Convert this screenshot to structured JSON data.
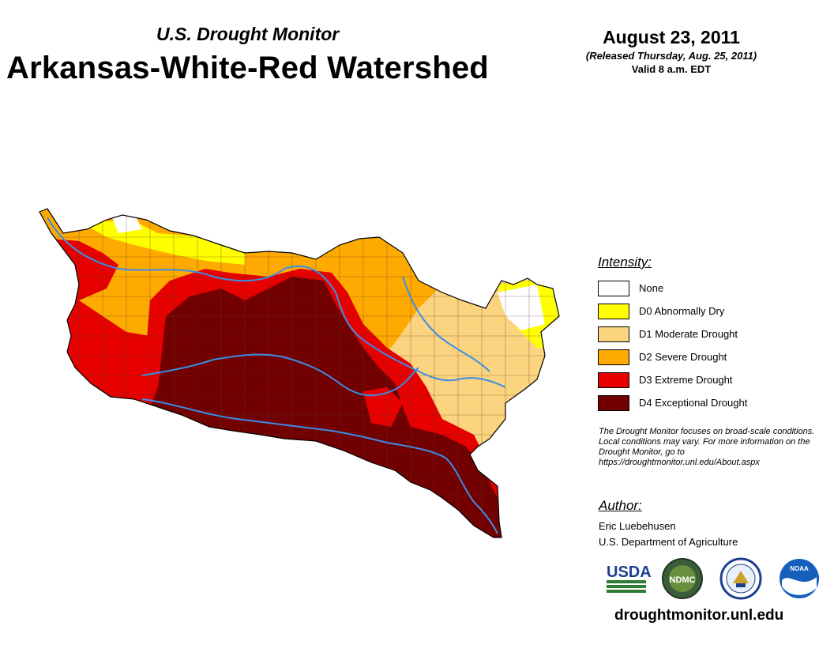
{
  "header": {
    "subtitle": "U.S. Drought Monitor",
    "title": "Arkansas-White-Red Watershed",
    "date": "August 23, 2011",
    "released": "(Released Thursday, Aug. 25, 2011)",
    "valid": "Valid 8 a.m. EDT"
  },
  "legend": {
    "title": "Intensity:",
    "items": [
      {
        "label": "None",
        "color": "#ffffff"
      },
      {
        "label": "D0 Abnormally Dry",
        "color": "#ffff00"
      },
      {
        "label": "D1 Moderate Drought",
        "color": "#fcd37f"
      },
      {
        "label": "D2 Severe Drought",
        "color": "#ffaa00"
      },
      {
        "label": "D3 Extreme Drought",
        "color": "#e60000"
      },
      {
        "label": "D4 Exceptional Drought",
        "color": "#730000"
      }
    ]
  },
  "note": "The Drought Monitor focuses on broad-scale conditions. Local conditions may vary. For more information on the Drought Monitor, go to https://droughtmonitor.unl.edu/About.aspx",
  "author": {
    "title": "Author:",
    "name": "Eric Luebehusen",
    "org": "U.S. Department of Agriculture"
  },
  "logos": {
    "usda": "USDA",
    "ndmc": "NDMC",
    "noaa": "NOAA",
    "items": [
      "usda-logo",
      "ndmc-logo",
      "doc-logo",
      "noaa-logo"
    ]
  },
  "footer": {
    "site": "droughtmonitor.unl.edu"
  },
  "colors": {
    "river": "#3a8ee6",
    "county_line": "#5a3a22"
  }
}
